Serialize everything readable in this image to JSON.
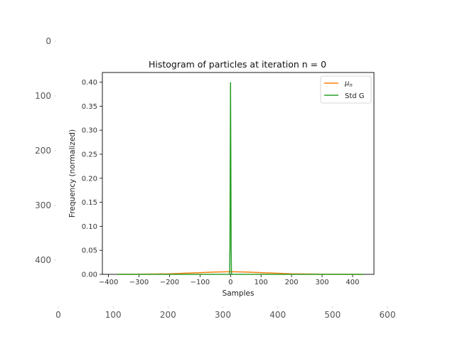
{
  "outer_axes": {
    "x_ticks": [
      0,
      100,
      200,
      300,
      400,
      500,
      600
    ],
    "y_ticks": [
      0,
      100,
      200,
      300,
      400
    ]
  },
  "chart_data": {
    "type": "line",
    "title": "Histogram of particles at iteration n = 0",
    "xlabel": "Samples",
    "ylabel": "Frequency (normalized)",
    "xlim": [
      -420,
      470
    ],
    "ylim": [
      0,
      0.42
    ],
    "x_ticks": [
      -400,
      -300,
      -200,
      -100,
      0,
      100,
      200,
      300,
      400
    ],
    "y_ticks": [
      0.0,
      0.05,
      0.1,
      0.15,
      0.2,
      0.25,
      0.3,
      0.35,
      0.4
    ],
    "y_tick_labels": [
      "0.00",
      "0.05",
      "0.10",
      "0.15",
      "0.20",
      "0.25",
      "0.30",
      "0.35",
      "0.40"
    ],
    "legend_position": "top-right",
    "series": [
      {
        "name": "μ_n",
        "color": "#ff7f0e",
        "x": [
          -370,
          -300,
          -200,
          -100,
          -50,
          0,
          50,
          100,
          200,
          300,
          400,
          435
        ],
        "y": [
          0.0001,
          0.0003,
          0.0012,
          0.0035,
          0.0048,
          0.0055,
          0.0048,
          0.0035,
          0.0012,
          0.0003,
          0.0001,
          0.0
        ]
      },
      {
        "name": "Std G",
        "color": "#2ca02c",
        "x": [
          -370,
          -10,
          -4,
          -3,
          -2,
          -1,
          0,
          1,
          2,
          3,
          4,
          10,
          435
        ],
        "y": [
          0.0,
          0.0,
          0.0,
          0.004,
          0.054,
          0.242,
          0.399,
          0.242,
          0.054,
          0.004,
          0.0,
          0.0,
          0.0
        ]
      }
    ]
  }
}
